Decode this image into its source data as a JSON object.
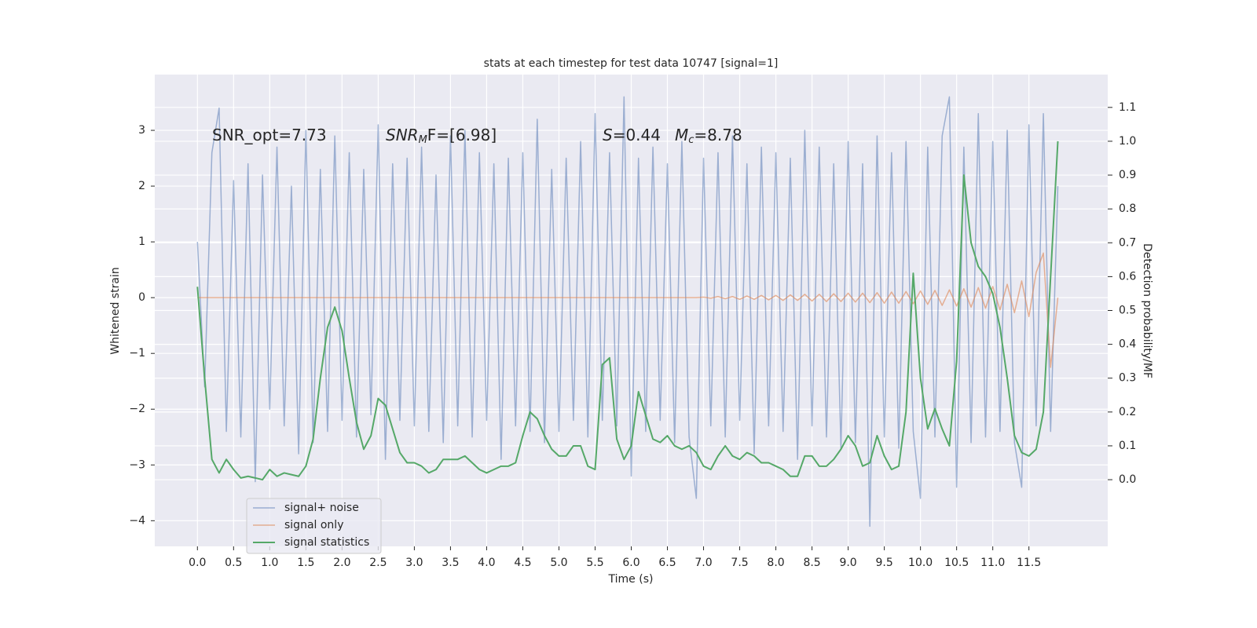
{
  "chart_data": {
    "type": "line",
    "title": "stats at each timestep for test data 10747 [signal=1]",
    "xlabel": "Time (s)",
    "ylabel": "Whitened strain",
    "y2label": "Detection probability/MF",
    "annotations": [
      {
        "main": "SNR_opt=7.73"
      },
      {
        "main": "SNR",
        "sub": "M",
        "rest": "F=[6.98]"
      },
      {
        "main": "S",
        "rest": "=0.44"
      },
      {
        "main": "M",
        "sub": "c",
        "rest": "=8.78"
      }
    ],
    "x": [
      0,
      0.1,
      0.2,
      0.3,
      0.4,
      0.5,
      0.6,
      0.7,
      0.8,
      0.9,
      1,
      1.1,
      1.2,
      1.3,
      1.4,
      1.5,
      1.6,
      1.7,
      1.8,
      1.9,
      2,
      2.1,
      2.2,
      2.3,
      2.4,
      2.5,
      2.6,
      2.7,
      2.8,
      2.9,
      3,
      3.1,
      3.2,
      3.3,
      3.4,
      3.5,
      3.6,
      3.7,
      3.8,
      3.9,
      4,
      4.1,
      4.2,
      4.3,
      4.4,
      4.5,
      4.6,
      4.7,
      4.8,
      4.9,
      5,
      5.1,
      5.2,
      5.3,
      5.4,
      5.5,
      5.6,
      5.7,
      5.8,
      5.9,
      6,
      6.1,
      6.2,
      6.3,
      6.4,
      6.5,
      6.6,
      6.7,
      6.8,
      6.9,
      7,
      7.1,
      7.2,
      7.3,
      7.4,
      7.5,
      7.6,
      7.7,
      7.8,
      7.9,
      8,
      8.1,
      8.2,
      8.3,
      8.4,
      8.5,
      8.6,
      8.7,
      8.8,
      8.9,
      9,
      9.1,
      9.2,
      9.3,
      9.4,
      9.5,
      9.6,
      9.7,
      9.8,
      9.9,
      10,
      10.1,
      10.2,
      10.3,
      10.4,
      10.5,
      10.6,
      10.7,
      10.8,
      10.9,
      11,
      11.1,
      11.2,
      11.3,
      11.4,
      11.5,
      11.6,
      11.7,
      11.8,
      11.9
    ],
    "series": [
      {
        "name": "signal+ noise",
        "color": "#4c72b0",
        "values": [
          1.0,
          -1.6,
          2.6,
          3.4,
          -2.4,
          2.1,
          -2.5,
          2.4,
          -3.3,
          2.2,
          -2.0,
          2.7,
          -2.3,
          2.0,
          -2.8,
          3.0,
          -2.6,
          2.3,
          -2.4,
          2.9,
          -2.2,
          2.6,
          -2.5,
          2.3,
          -2.1,
          3.1,
          -2.9,
          2.4,
          -2.2,
          2.5,
          -2.3,
          2.7,
          -2.4,
          2.2,
          -2.6,
          2.9,
          -2.3,
          3.0,
          -2.5,
          2.6,
          -2.2,
          2.4,
          -2.9,
          2.5,
          -2.3,
          2.6,
          -2.4,
          3.2,
          -2.6,
          2.3,
          -2.4,
          2.5,
          -2.2,
          2.8,
          -2.5,
          3.3,
          -2.2,
          2.6,
          -2.3,
          3.6,
          -3.2,
          2.5,
          -2.4,
          2.7,
          -2.2,
          2.4,
          -2.6,
          2.8,
          -2.5,
          -3.6,
          2.5,
          -2.3,
          2.6,
          -2.5,
          2.9,
          -2.2,
          2.4,
          -2.8,
          2.7,
          -2.3,
          2.6,
          -2.4,
          2.5,
          -2.9,
          3.0,
          -2.3,
          2.7,
          -2.5,
          2.4,
          -2.7,
          2.8,
          -2.6,
          2.4,
          -4.1,
          2.9,
          -2.5,
          2.6,
          -2.7,
          2.8,
          -2.4,
          -3.6,
          2.7,
          -2.5,
          2.9,
          3.6,
          -3.4,
          2.7,
          -2.6,
          3.3,
          -2.5,
          2.8,
          -2.4,
          3.0,
          -2.6,
          -3.4,
          3.1,
          -2.3,
          3.3,
          -2.4,
          2.0
        ]
      },
      {
        "name": "signal only",
        "color": "#dd8452",
        "values": [
          0,
          0,
          0,
          0,
          0,
          0,
          0,
          0,
          0,
          0,
          0,
          0,
          0,
          0,
          0,
          0,
          0,
          0,
          0,
          0,
          0,
          0,
          0,
          0,
          0,
          0,
          0,
          0,
          0,
          0,
          0,
          0,
          0,
          0,
          0,
          0,
          0,
          0,
          0,
          0,
          0,
          0,
          0,
          0,
          0,
          0,
          0,
          0,
          0,
          0,
          0,
          0,
          0,
          0,
          0,
          0,
          0,
          0,
          0,
          0,
          0,
          0,
          0,
          0,
          0,
          0,
          0,
          0,
          0,
          0,
          0.01,
          -0.01,
          0.02,
          -0.02,
          0.02,
          -0.03,
          0.03,
          -0.03,
          0.04,
          -0.04,
          0.04,
          -0.05,
          0.05,
          -0.05,
          0.06,
          -0.06,
          0.06,
          -0.07,
          0.07,
          -0.07,
          0.08,
          -0.08,
          0.08,
          -0.09,
          0.09,
          -0.1,
          0.1,
          -0.1,
          0.11,
          -0.11,
          0.12,
          -0.12,
          0.13,
          -0.14,
          0.14,
          -0.15,
          0.16,
          -0.17,
          0.18,
          -0.19,
          0.2,
          -0.22,
          0.24,
          -0.27,
          0.3,
          -0.34,
          0.45,
          0.8,
          -1.25,
          0
        ]
      },
      {
        "name": "signal statistics",
        "color": "#55a868",
        "axis": "y2",
        "values": [
          0.57,
          0.3,
          0.06,
          0.02,
          0.06,
          0.03,
          0.005,
          0.01,
          0.005,
          0.0,
          0.03,
          0.01,
          0.02,
          0.015,
          0.01,
          0.04,
          0.12,
          0.3,
          0.45,
          0.51,
          0.44,
          0.3,
          0.17,
          0.09,
          0.13,
          0.24,
          0.22,
          0.15,
          0.08,
          0.05,
          0.05,
          0.04,
          0.02,
          0.03,
          0.06,
          0.06,
          0.06,
          0.07,
          0.05,
          0.03,
          0.02,
          0.03,
          0.04,
          0.04,
          0.05,
          0.13,
          0.2,
          0.18,
          0.13,
          0.09,
          0.07,
          0.07,
          0.1,
          0.1,
          0.04,
          0.03,
          0.34,
          0.36,
          0.12,
          0.06,
          0.1,
          0.26,
          0.19,
          0.12,
          0.11,
          0.13,
          0.1,
          0.09,
          0.1,
          0.08,
          0.04,
          0.03,
          0.07,
          0.1,
          0.07,
          0.06,
          0.08,
          0.07,
          0.05,
          0.05,
          0.04,
          0.03,
          0.01,
          0.01,
          0.07,
          0.07,
          0.04,
          0.04,
          0.06,
          0.09,
          0.13,
          0.1,
          0.04,
          0.05,
          0.13,
          0.07,
          0.03,
          0.04,
          0.2,
          0.61,
          0.3,
          0.15,
          0.21,
          0.15,
          0.1,
          0.35,
          0.9,
          0.7,
          0.63,
          0.6,
          0.55,
          0.45,
          0.3,
          0.13,
          0.08,
          0.07,
          0.09,
          0.2,
          0.6,
          1.0
        ]
      }
    ],
    "xlim": [
      -0.59,
      12.59
    ],
    "xticks": [
      {
        "value": 0,
        "label": "0.0"
      },
      0.5,
      {
        "value": 1,
        "label": "1.0"
      },
      1.5,
      {
        "value": 2,
        "label": "2.0"
      },
      2.5,
      {
        "value": 3,
        "label": "3.0"
      },
      3.5,
      {
        "value": 4,
        "label": "4.0"
      },
      4.5,
      {
        "value": 5,
        "label": "5.0"
      },
      5.5,
      {
        "value": 6,
        "label": "6.0"
      },
      6.5,
      {
        "value": 7,
        "label": "7.0"
      },
      7.5,
      {
        "value": 8,
        "label": "8.0"
      },
      8.5,
      {
        "value": 9,
        "label": "9.0"
      },
      9.5,
      {
        "value": 10,
        "label": "10.0"
      },
      10.5,
      {
        "value": 11,
        "label": "11.0"
      },
      11.5
    ],
    "ylim": [
      -4.46,
      4.0
    ],
    "yticks": [
      {
        "value": -4,
        "label": "−4"
      },
      {
        "value": -3,
        "label": "−3"
      },
      {
        "value": -2,
        "label": "−2"
      },
      {
        "value": -1,
        "label": "−1"
      },
      0,
      1,
      2,
      3
    ],
    "y2lim": [
      -0.197,
      1.197
    ],
    "y2ticks": [
      {
        "value": 0,
        "label": "0.0"
      },
      0.1,
      0.2,
      0.3,
      0.4,
      0.5,
      0.6,
      0.7,
      0.8,
      0.9,
      {
        "value": 1,
        "label": "1.0"
      },
      1.1
    ],
    "grid": true,
    "legend": "lower left"
  }
}
